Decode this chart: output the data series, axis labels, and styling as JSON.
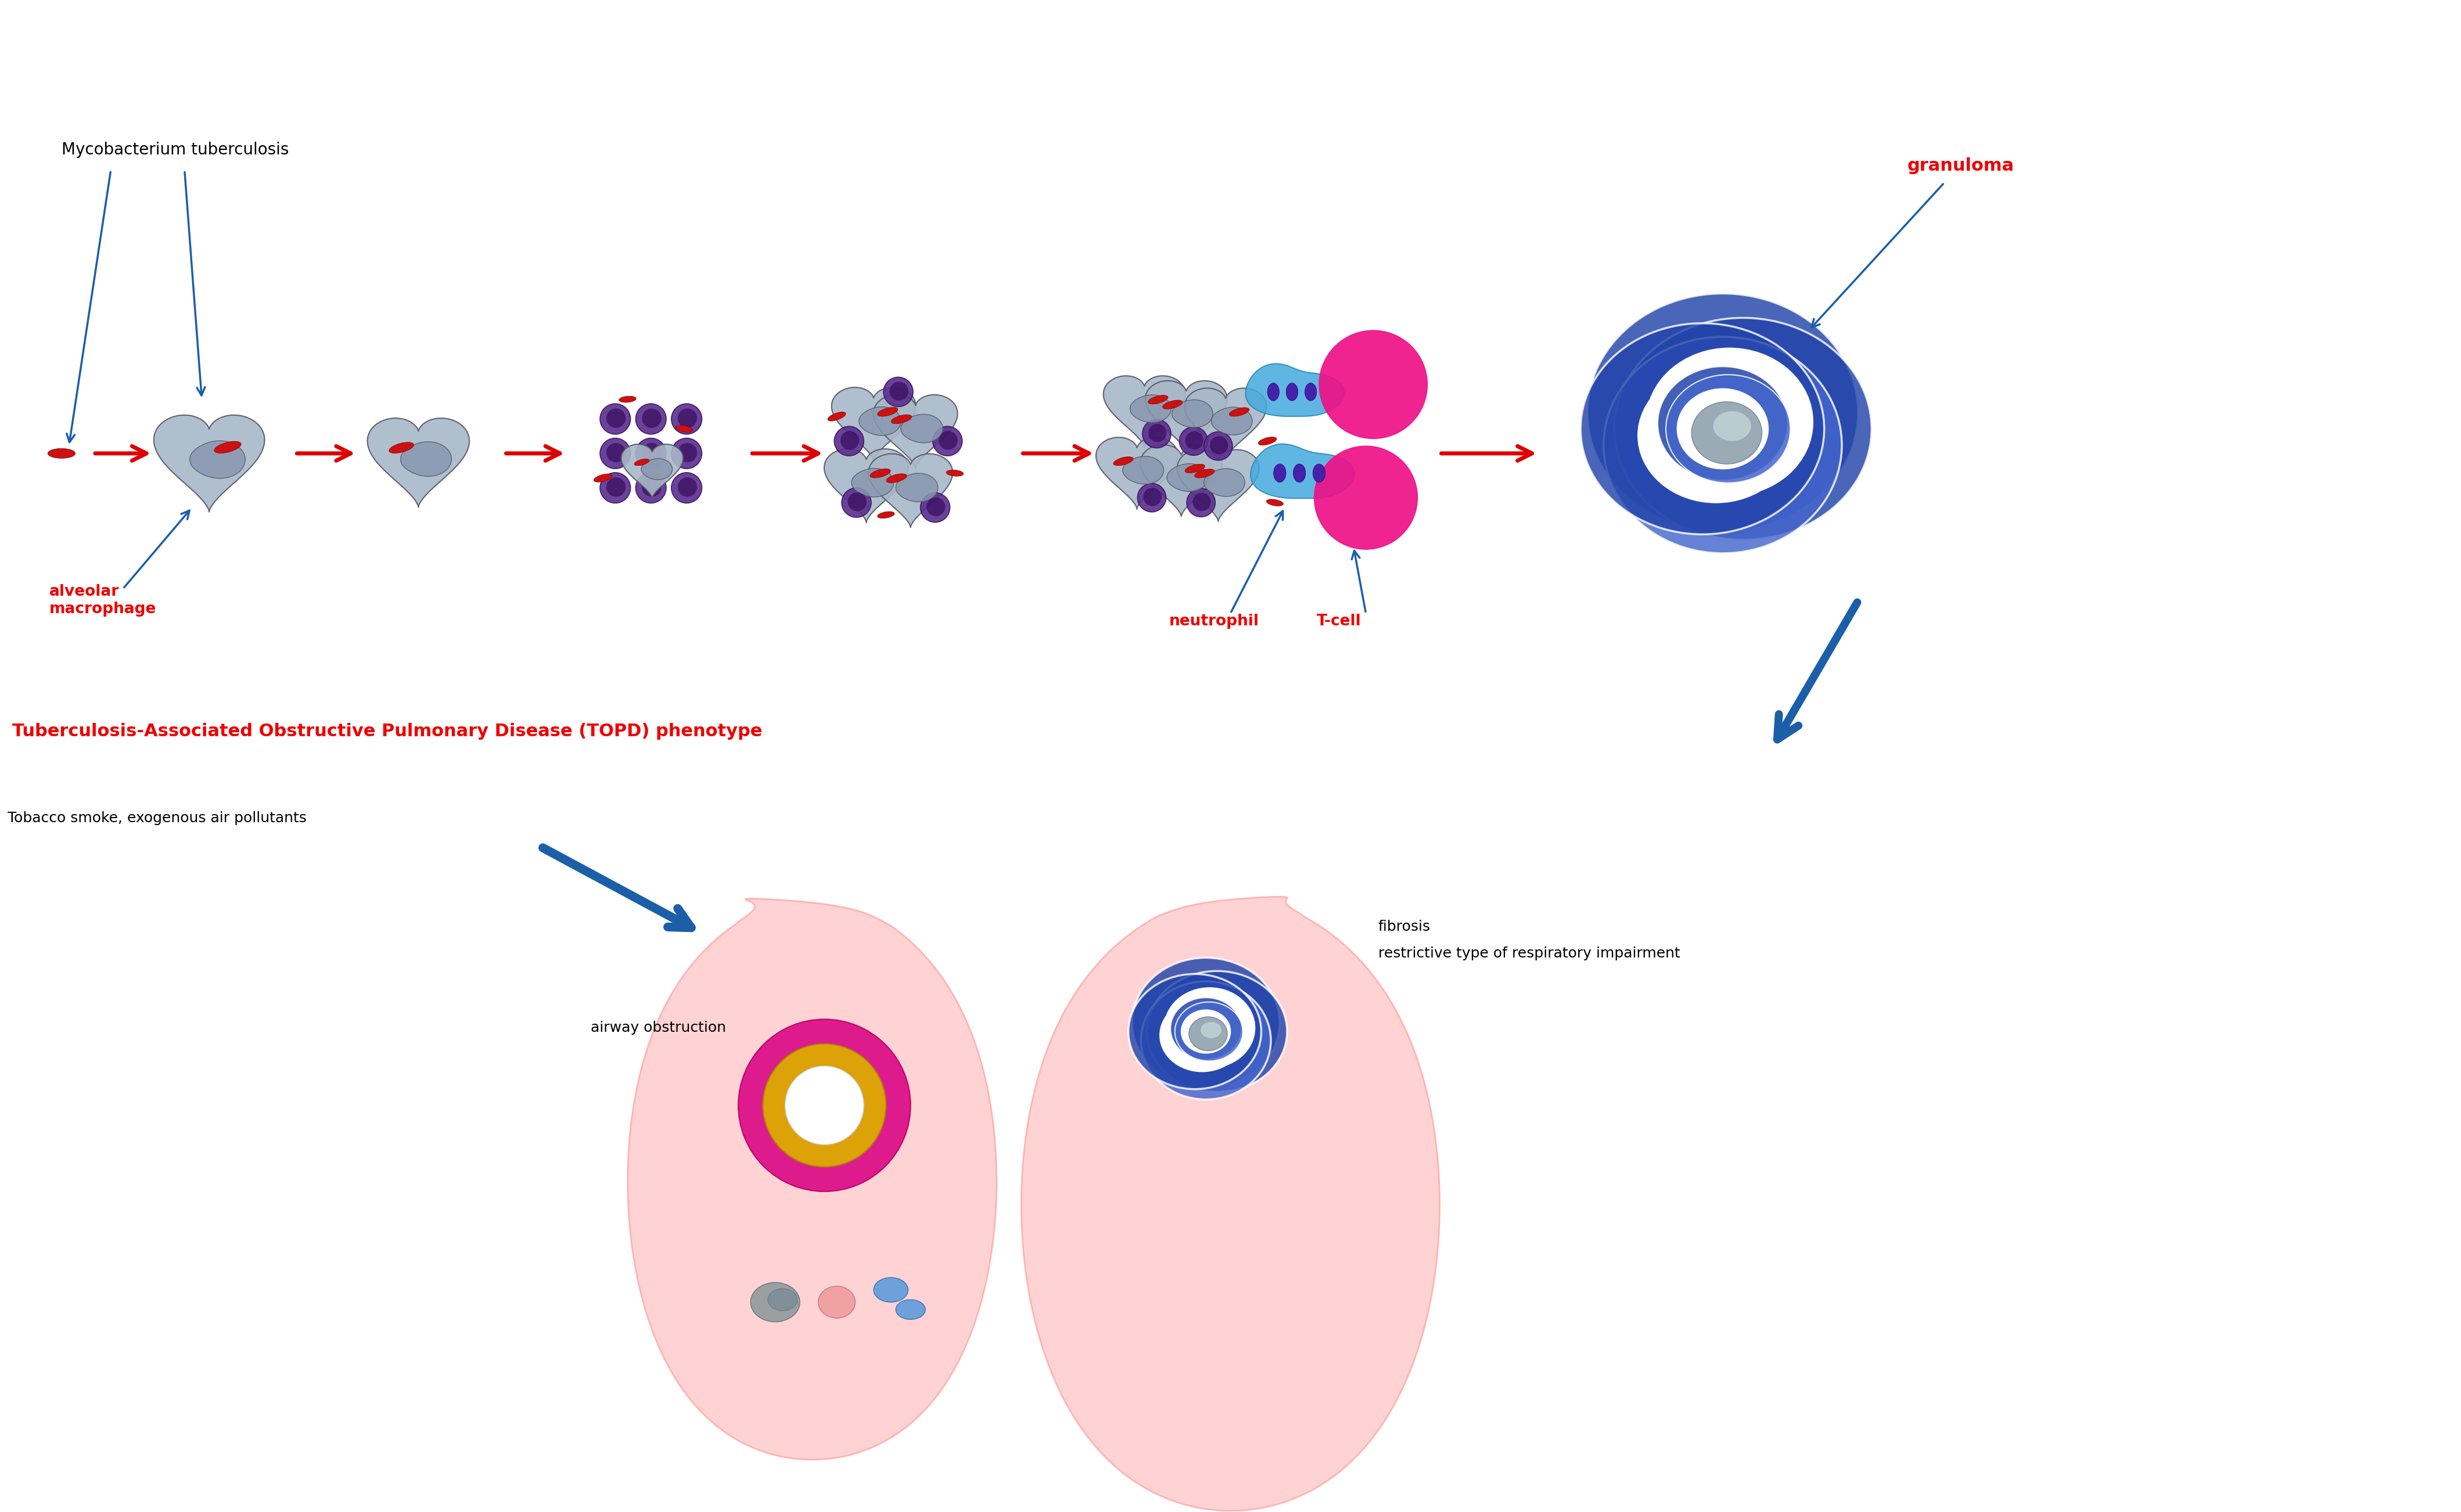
{
  "background_color": "#ffffff",
  "text_mycobacterium": "Mycobacterium tuberculosis",
  "text_alveolar": "alveolar\nmacrophage",
  "text_neutrophil": "neutrophil",
  "text_tcell": "T-cell",
  "text_granuloma": "granuloma",
  "text_topd": "Tuberculosis-Associated Obstructive Pulmonary Disease (TOPD) phenotype",
  "text_tobacco": "Tobacco smoke, exogenous air pollutants",
  "text_airway": "airway obstruction",
  "text_fibrosis": "fibrosis\nrestrictive type of respiratory impairment",
  "color_red": "#EE0000",
  "color_blue": "#1565C0",
  "color_arrow_blue": "#1A5FA8",
  "color_arrow_red": "#DD0000",
  "color_macro_fill": "#A8B8C8",
  "color_macro_edge": "#555566",
  "color_nucleus": "#8898B0",
  "color_bacteria": "#CC1111",
  "color_lymph": "#5B2D8E",
  "color_lymph_dark": "#3A1060",
  "color_tcell_blue": "#44AADD",
  "color_tcell_nuc": "#4422AA",
  "color_neutrophil": "#EE1188",
  "color_granuloma": "#2244AA",
  "color_granuloma_light": "#4466CC",
  "color_lung_pink": "#FFCCCC",
  "color_airway_magenta": "#DD1188",
  "color_airway_gold": "#DDAA00",
  "color_small_gray": "#889899",
  "color_small_pink": "#EE9999",
  "color_small_blue": "#5599DD"
}
